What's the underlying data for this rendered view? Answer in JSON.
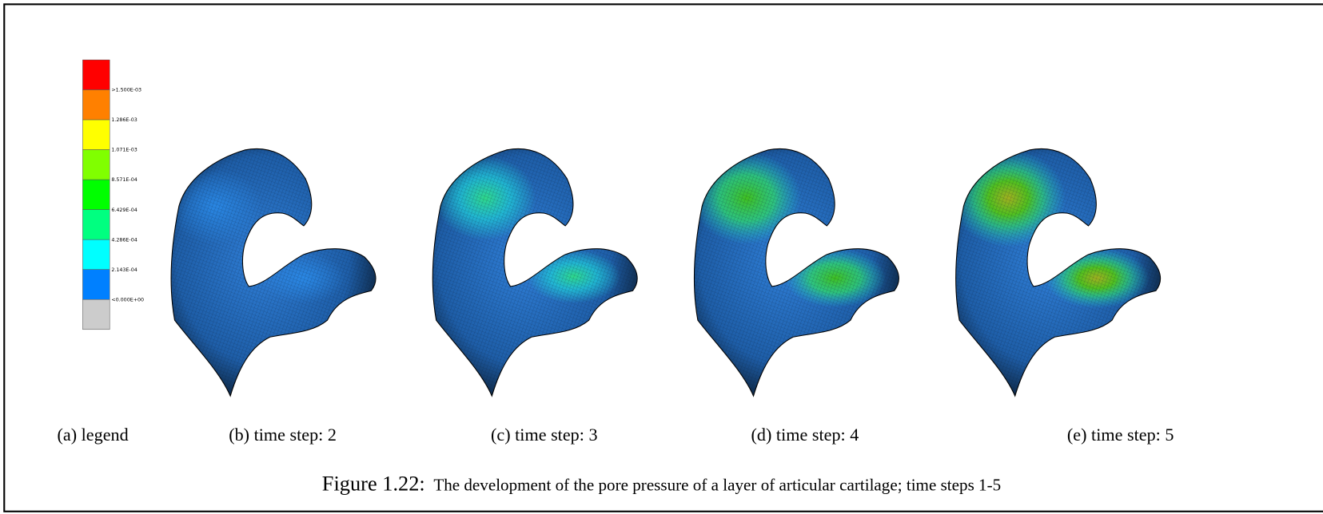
{
  "legend": {
    "colors": [
      "#ff0000",
      "#ff8000",
      "#ffff00",
      "#80ff00",
      "#00ff00",
      "#00ff80",
      "#00ffff",
      "#0080ff",
      "#cccccc"
    ],
    "labels": [
      ">1.500E-03",
      "1.286E-03",
      "1.071E-03",
      "8.571E-04",
      "6.429E-04",
      "4.286E-04",
      "2.143E-04",
      "<0.000E+00"
    ]
  },
  "subfigures": [
    "(a) legend",
    "(b) time step: 2",
    "(c) time step: 3",
    "(d) time step: 4",
    "(e) time step: 5"
  ],
  "caption": {
    "number": "Figure 1.22:",
    "text": "The development of the pore pressure of a layer of articular cartilage; time steps 1-5"
  }
}
